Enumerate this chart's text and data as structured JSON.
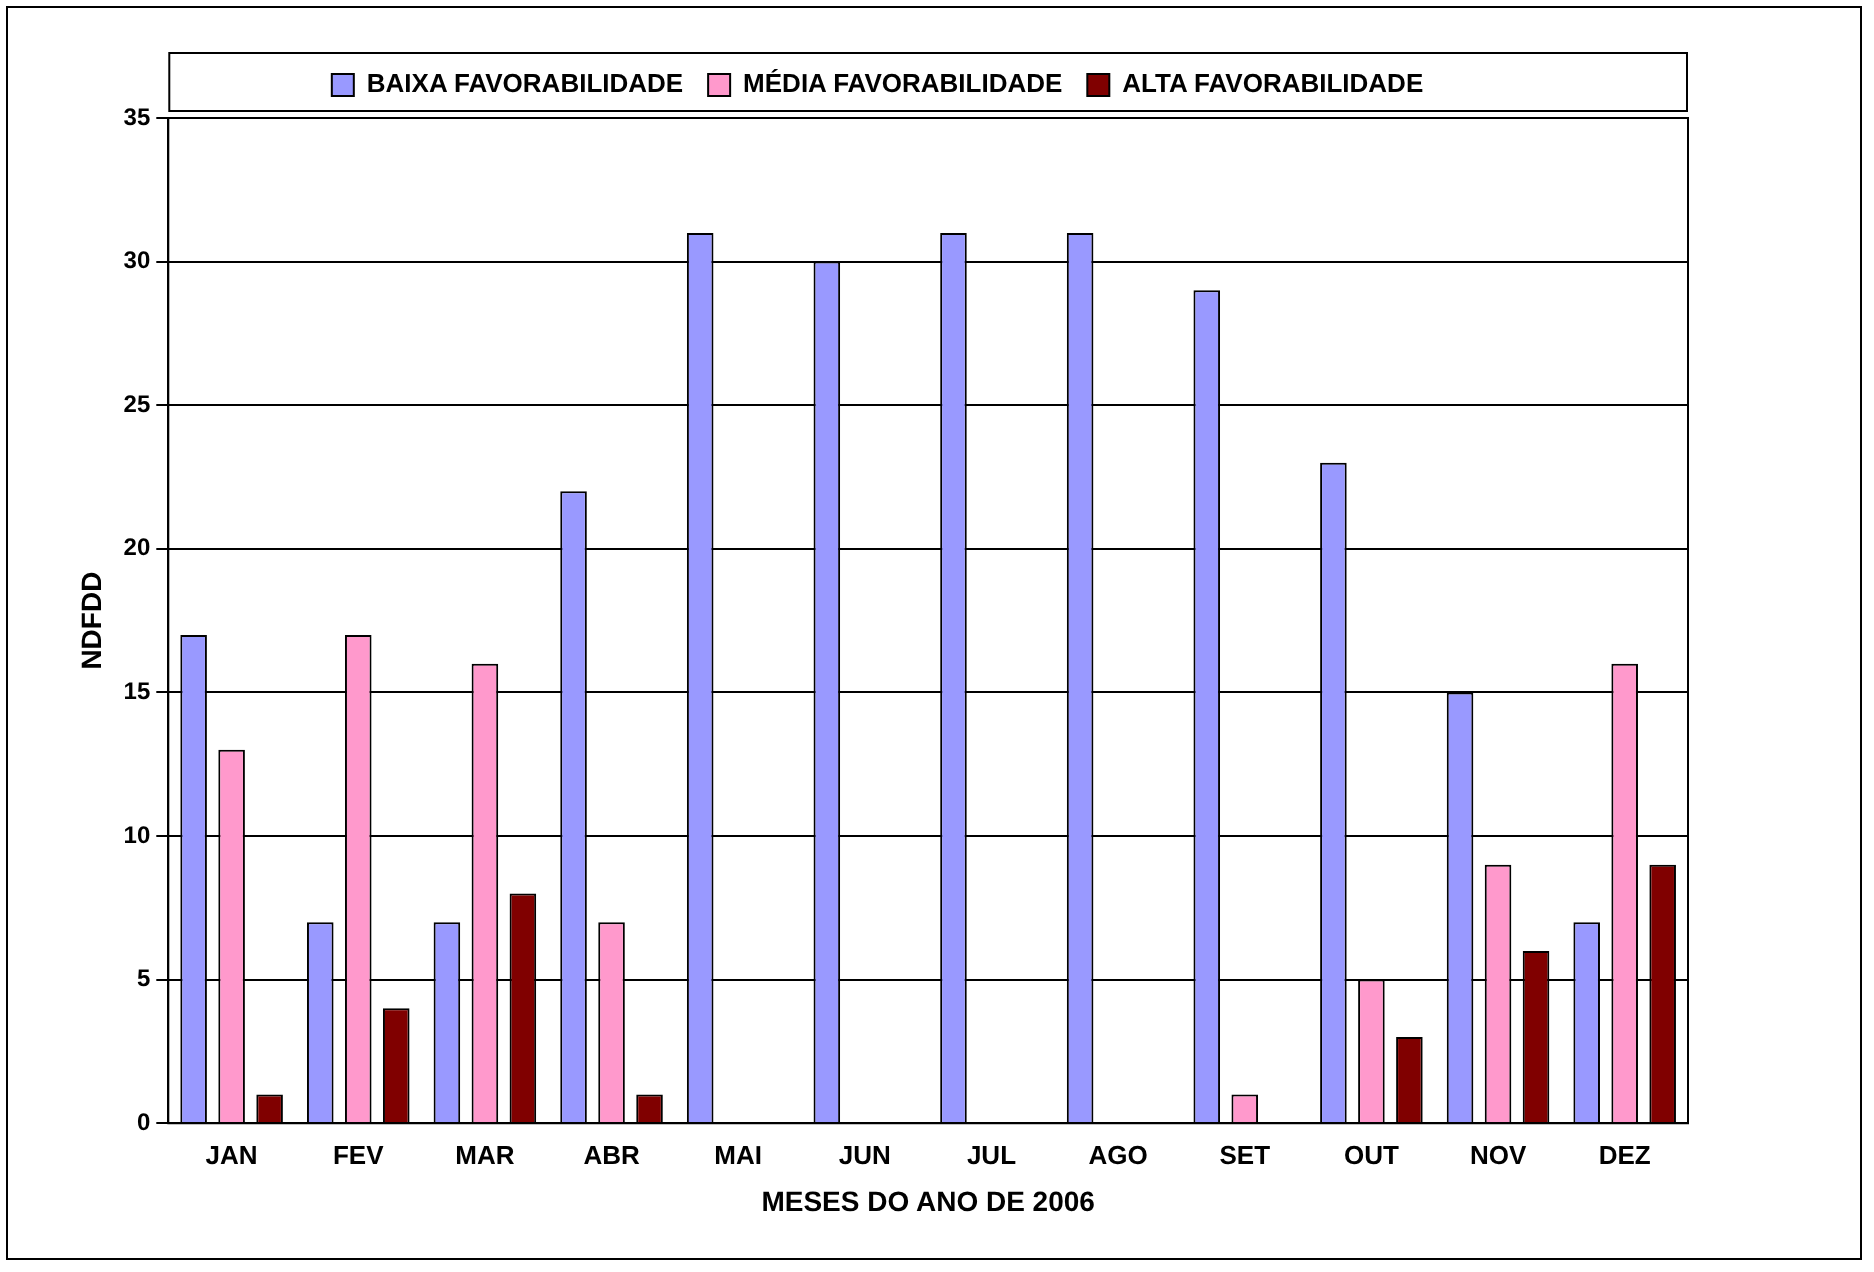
{
  "chart_data": {
    "type": "bar",
    "xlabel": "MESES DO ANO DE 2006",
    "ylabel": "NDFDD",
    "categories": [
      "JAN",
      "FEV",
      "MAR",
      "ABR",
      "MAI",
      "JUN",
      "JUL",
      "AGO",
      "SET",
      "OUT",
      "NOV",
      "DEZ"
    ],
    "series": [
      {
        "name": "BAIXA FAVORABILIDADE",
        "color": "#9999ff",
        "values": [
          17,
          7,
          7,
          22,
          31,
          30,
          31,
          31,
          29,
          23,
          15,
          7
        ]
      },
      {
        "name": "MÉDIA FAVORABILIDADE",
        "color": "#ff99cc",
        "values": [
          13,
          17,
          16,
          7,
          0,
          0,
          0,
          0,
          1,
          5,
          9,
          16
        ]
      },
      {
        "name": "ALTA FAVORABILIDADE",
        "color": "#800000",
        "values": [
          1,
          4,
          8,
          1,
          0,
          0,
          0,
          0,
          0,
          3,
          6,
          9
        ]
      }
    ],
    "ylim": [
      0,
      35
    ],
    "yticks": [
      0,
      5,
      10,
      15,
      20,
      25,
      30,
      35
    ],
    "grid": "y",
    "legend": "top"
  }
}
